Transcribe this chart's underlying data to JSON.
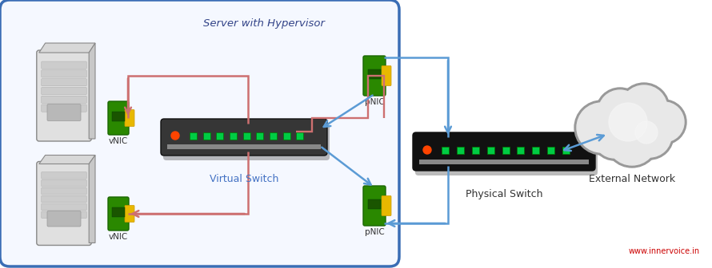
{
  "bg_color": "#ffffff",
  "box_color": "#3a6db5",
  "box_bg": "#f5f8ff",
  "label_box": "Server with Hypervisor",
  "label_vswitch": "Virtual Switch",
  "label_pswitch": "Physical Switch",
  "label_cloud": "External Network",
  "arrow_blue": "#5b9bd5",
  "arrow_red": "#cd7070",
  "watermark": "www.innervoice.in",
  "watermark_color": "#cc0000",
  "fig_w": 8.9,
  "fig_h": 3.36
}
